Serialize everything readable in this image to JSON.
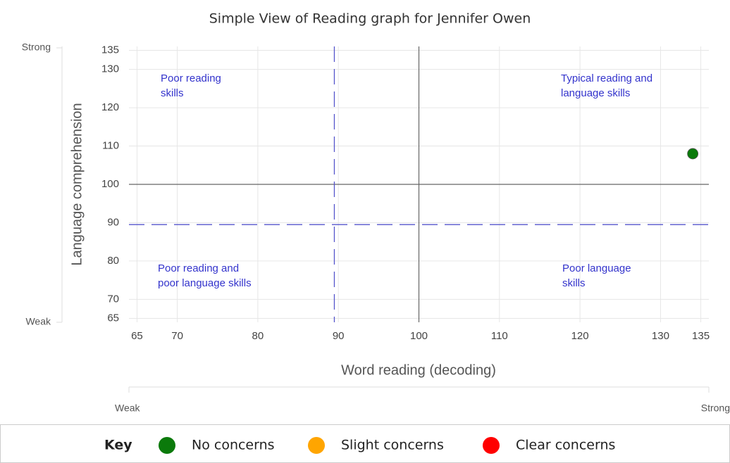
{
  "chart_data": {
    "type": "scatter",
    "title": "Simple View of Reading graph for Jennifer Owen",
    "x_label": "Word reading (decoding)",
    "y_label": "Language comprehension",
    "xlim": [
      64,
      136
    ],
    "ylim": [
      64,
      136
    ],
    "xticks": [
      65,
      70,
      80,
      90,
      100,
      110,
      120,
      130,
      135
    ],
    "yticks": [
      65,
      70,
      80,
      90,
      100,
      110,
      120,
      130,
      135
    ],
    "grid": true,
    "reference_lines": [
      {
        "axis": "x",
        "value": 100,
        "style": "solid"
      },
      {
        "axis": "y",
        "value": 100,
        "style": "solid"
      },
      {
        "axis": "x",
        "value": 89.5,
        "style": "dashed"
      },
      {
        "axis": "y",
        "value": 89.5,
        "style": "dashed"
      }
    ],
    "annotations": [
      "Poor reading\nskills",
      "Typical reading and\nlanguage skills",
      "Poor reading and\npoor language skills",
      "Poor language\nskills"
    ],
    "y_scale_labels": [
      "Weak",
      "Strong"
    ],
    "x_scale_labels": [
      "Weak",
      "Strong"
    ],
    "legend_title": "Key",
    "series": [
      {
        "name": "No concerns",
        "color": "#0b7a0b",
        "x": [
          134
        ],
        "values": [
          108
        ]
      },
      {
        "name": "Slight concerns",
        "color": "#ffa500",
        "x": [],
        "values": []
      },
      {
        "name": "Clear concerns",
        "color": "#ff0000",
        "x": [],
        "values": []
      }
    ]
  }
}
